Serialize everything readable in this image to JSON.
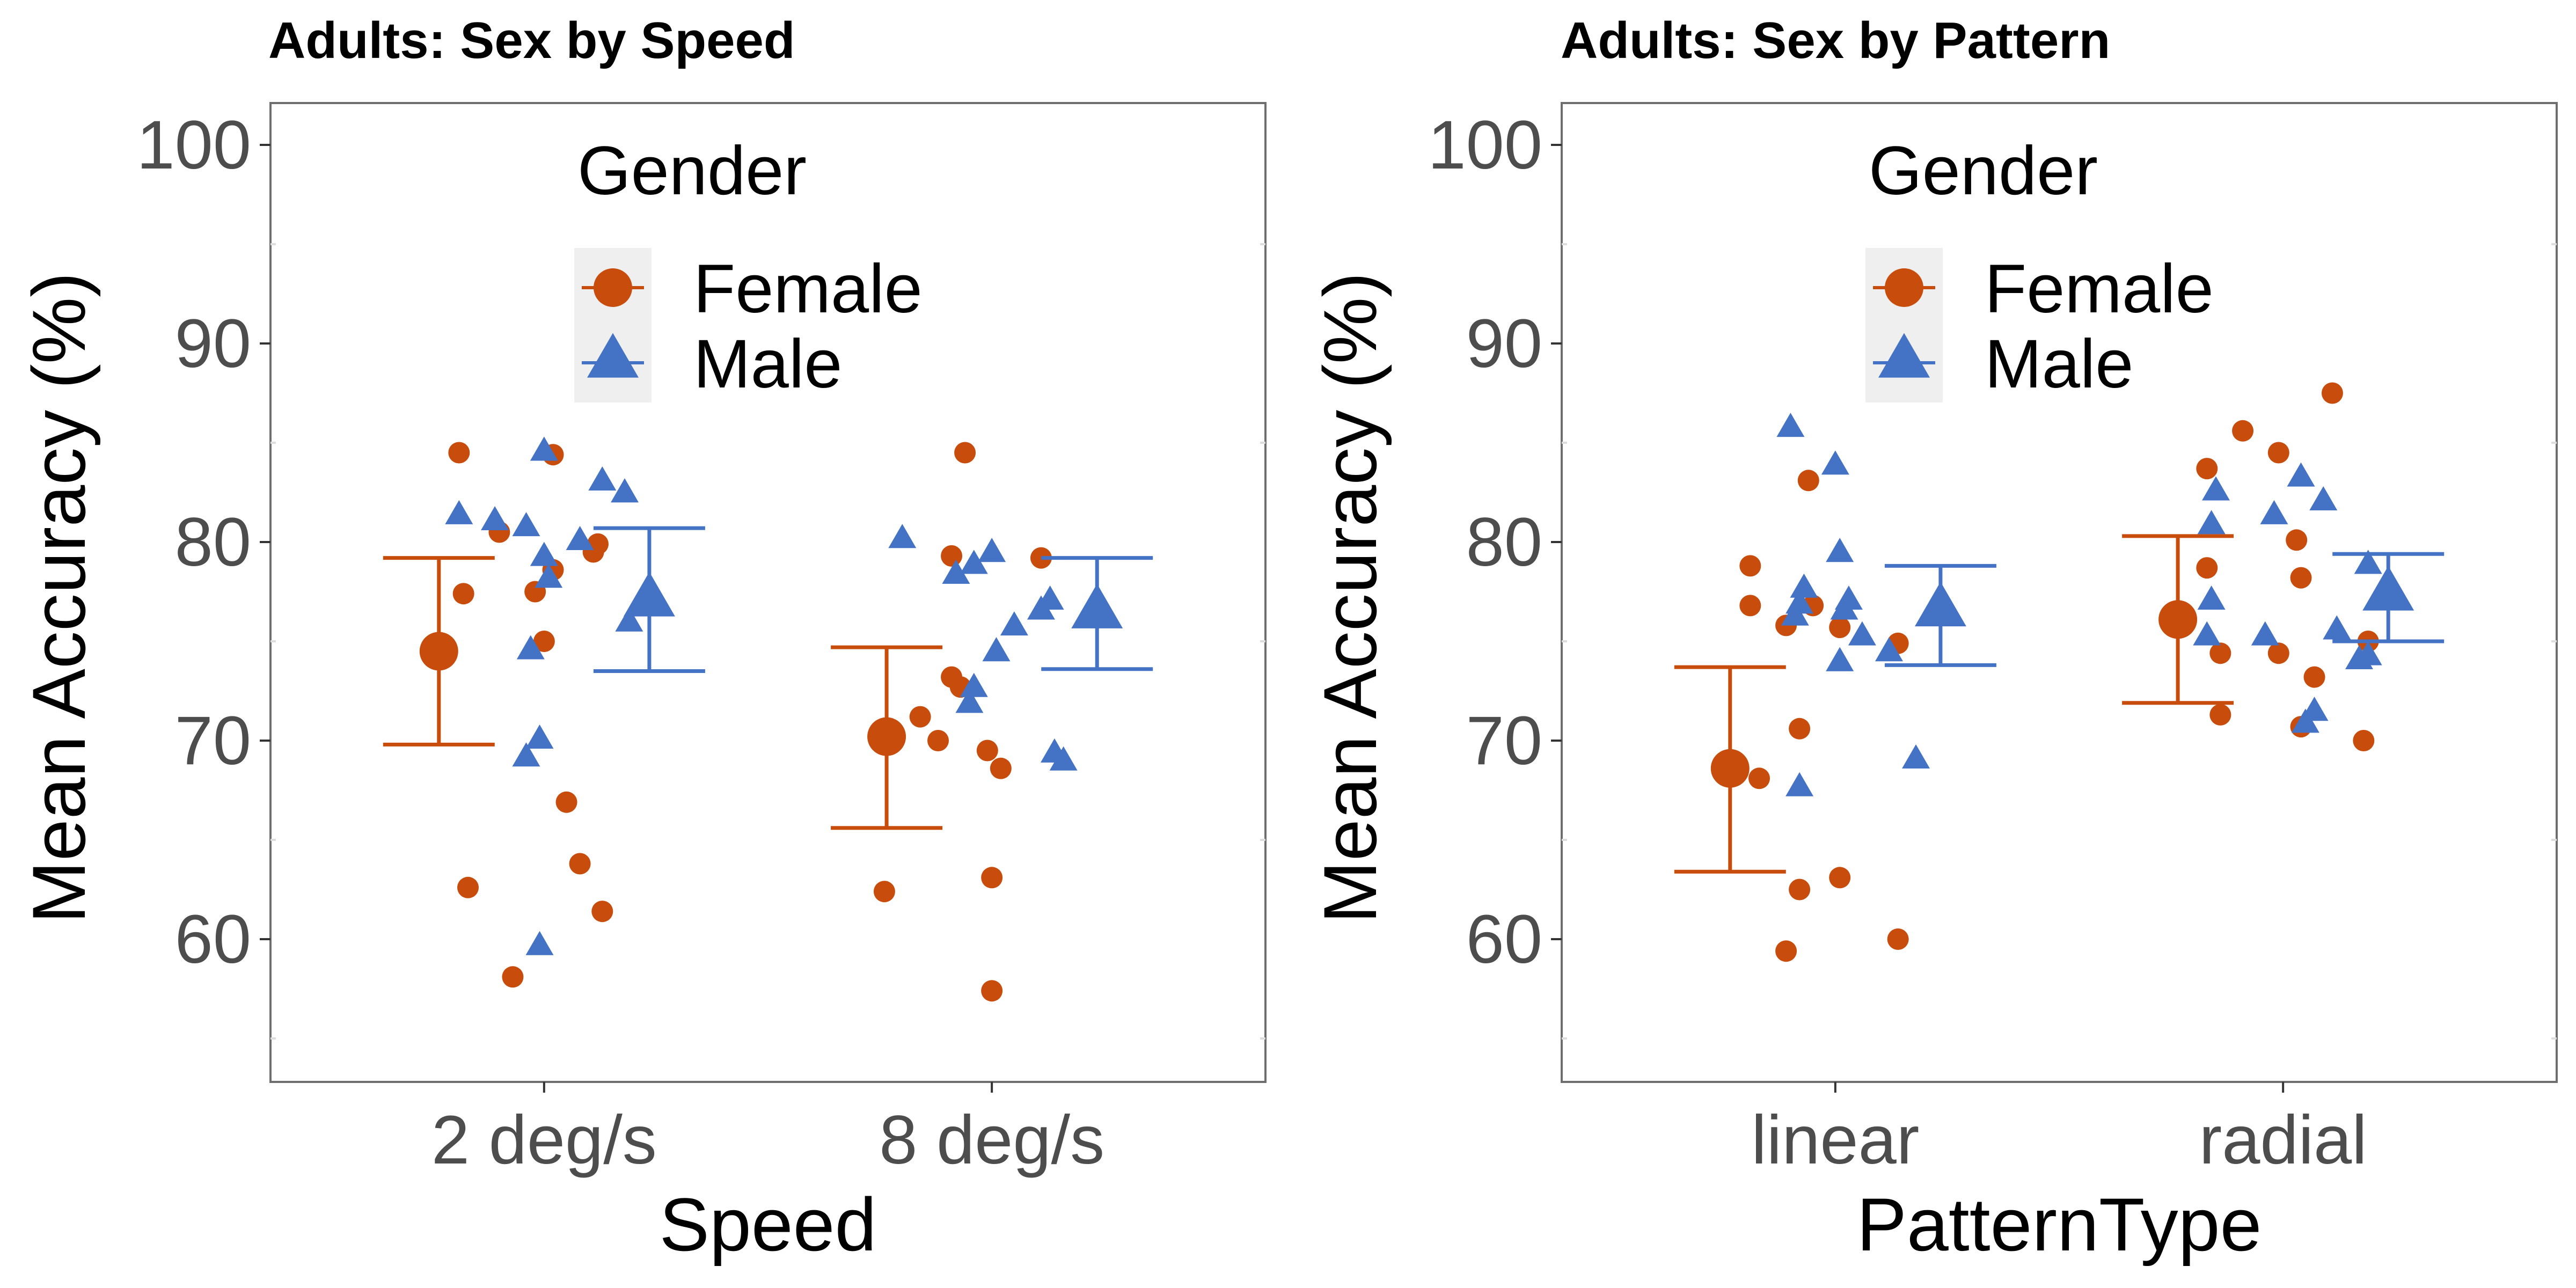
{
  "colors": {
    "female": "#C84C0C",
    "male": "#4472C4",
    "axis_text": "#4D4D4D",
    "panel_border": "#6E6E6E",
    "legend_key_bg": "#EFEFEF"
  },
  "chart_data": [
    {
      "type": "scatter",
      "title": "Adults: Sex by Speed",
      "xlabel": "Speed",
      "ylabel": "Mean Accuracy (%)",
      "categories": [
        "2 deg/s",
        "8 deg/s"
      ],
      "yticks": [
        "60",
        "70",
        "80",
        "90",
        "100"
      ],
      "ylim": [
        53,
        102
      ],
      "grid": false,
      "legend": {
        "title": "Gender",
        "placement": "top-center",
        "entries": [
          "Female",
          "Male"
        ]
      },
      "summary": [
        {
          "group": "Female",
          "category": "2 deg/s",
          "mean": 74.5,
          "lower": 69.8,
          "upper": 79.2
        },
        {
          "group": "Male",
          "category": "2 deg/s",
          "mean": 77.0,
          "lower": 73.5,
          "upper": 80.7
        },
        {
          "group": "Female",
          "category": "8 deg/s",
          "mean": 70.2,
          "lower": 65.6,
          "upper": 74.7
        },
        {
          "group": "Male",
          "category": "8 deg/s",
          "mean": 76.4,
          "lower": 73.6,
          "upper": 79.2
        }
      ],
      "points": [
        {
          "group": "Female",
          "category": "2 deg/s",
          "dx": -0.19,
          "y": 84.5
        },
        {
          "group": "Female",
          "category": "2 deg/s",
          "dx": -0.18,
          "y": 77.4
        },
        {
          "group": "Female",
          "category": "2 deg/s",
          "dx": -0.17,
          "y": 62.6
        },
        {
          "group": "Female",
          "category": "2 deg/s",
          "dx": -0.1,
          "y": 80.5
        },
        {
          "group": "Female",
          "category": "2 deg/s",
          "dx": -0.07,
          "y": 58.1
        },
        {
          "group": "Female",
          "category": "2 deg/s",
          "dx": -0.02,
          "y": 77.5
        },
        {
          "group": "Female",
          "category": "2 deg/s",
          "dx": 0.0,
          "y": 75.0
        },
        {
          "group": "Female",
          "category": "2 deg/s",
          "dx": 0.02,
          "y": 84.4
        },
        {
          "group": "Female",
          "category": "2 deg/s",
          "dx": 0.02,
          "y": 78.6
        },
        {
          "group": "Female",
          "category": "2 deg/s",
          "dx": 0.05,
          "y": 66.9
        },
        {
          "group": "Female",
          "category": "2 deg/s",
          "dx": 0.08,
          "y": 63.8
        },
        {
          "group": "Female",
          "category": "2 deg/s",
          "dx": 0.11,
          "y": 79.5
        },
        {
          "group": "Female",
          "category": "2 deg/s",
          "dx": 0.12,
          "y": 79.9
        },
        {
          "group": "Female",
          "category": "2 deg/s",
          "dx": 0.13,
          "y": 61.4
        },
        {
          "group": "Male",
          "category": "2 deg/s",
          "dx": -0.19,
          "y": 81.3
        },
        {
          "group": "Male",
          "category": "2 deg/s",
          "dx": -0.11,
          "y": 81.0
        },
        {
          "group": "Male",
          "category": "2 deg/s",
          "dx": -0.04,
          "y": 80.7
        },
        {
          "group": "Male",
          "category": "2 deg/s",
          "dx": -0.04,
          "y": 69.1
        },
        {
          "group": "Male",
          "category": "2 deg/s",
          "dx": -0.03,
          "y": 74.5
        },
        {
          "group": "Male",
          "category": "2 deg/s",
          "dx": -0.01,
          "y": 70.0
        },
        {
          "group": "Male",
          "category": "2 deg/s",
          "dx": -0.01,
          "y": 59.6
        },
        {
          "group": "Male",
          "category": "2 deg/s",
          "dx": 0.0,
          "y": 84.5
        },
        {
          "group": "Male",
          "category": "2 deg/s",
          "dx": 0.0,
          "y": 79.2
        },
        {
          "group": "Male",
          "category": "2 deg/s",
          "dx": 0.01,
          "y": 78.1
        },
        {
          "group": "Male",
          "category": "2 deg/s",
          "dx": 0.08,
          "y": 80.0
        },
        {
          "group": "Male",
          "category": "2 deg/s",
          "dx": 0.13,
          "y": 83.0
        },
        {
          "group": "Male",
          "category": "2 deg/s",
          "dx": 0.18,
          "y": 82.4
        },
        {
          "group": "Male",
          "category": "2 deg/s",
          "dx": 0.19,
          "y": 75.9
        },
        {
          "group": "Female",
          "category": "8 deg/s",
          "dx": -0.24,
          "y": 62.4
        },
        {
          "group": "Female",
          "category": "8 deg/s",
          "dx": -0.16,
          "y": 71.2
        },
        {
          "group": "Female",
          "category": "8 deg/s",
          "dx": -0.12,
          "y": 70.0
        },
        {
          "group": "Female",
          "category": "8 deg/s",
          "dx": -0.09,
          "y": 79.3
        },
        {
          "group": "Female",
          "category": "8 deg/s",
          "dx": -0.09,
          "y": 73.2
        },
        {
          "group": "Female",
          "category": "8 deg/s",
          "dx": -0.07,
          "y": 72.7
        },
        {
          "group": "Female",
          "category": "8 deg/s",
          "dx": -0.06,
          "y": 84.5
        },
        {
          "group": "Female",
          "category": "8 deg/s",
          "dx": 0.0,
          "y": 63.1
        },
        {
          "group": "Female",
          "category": "8 deg/s",
          "dx": -0.01,
          "y": 69.5
        },
        {
          "group": "Female",
          "category": "8 deg/s",
          "dx": 0.02,
          "y": 68.6
        },
        {
          "group": "Female",
          "category": "8 deg/s",
          "dx": 0.0,
          "y": 57.4
        },
        {
          "group": "Female",
          "category": "8 deg/s",
          "dx": 0.11,
          "y": 79.2
        },
        {
          "group": "Male",
          "category": "8 deg/s",
          "dx": -0.2,
          "y": 80.1
        },
        {
          "group": "Male",
          "category": "8 deg/s",
          "dx": -0.08,
          "y": 78.3
        },
        {
          "group": "Male",
          "category": "8 deg/s",
          "dx": -0.04,
          "y": 78.8
        },
        {
          "group": "Male",
          "category": "8 deg/s",
          "dx": -0.04,
          "y": 72.6
        },
        {
          "group": "Male",
          "category": "8 deg/s",
          "dx": -0.05,
          "y": 71.8
        },
        {
          "group": "Male",
          "category": "8 deg/s",
          "dx": 0.0,
          "y": 79.4
        },
        {
          "group": "Male",
          "category": "8 deg/s",
          "dx": 0.01,
          "y": 74.4
        },
        {
          "group": "Male",
          "category": "8 deg/s",
          "dx": 0.05,
          "y": 75.7
        },
        {
          "group": "Male",
          "category": "8 deg/s",
          "dx": 0.11,
          "y": 76.5
        },
        {
          "group": "Male",
          "category": "8 deg/s",
          "dx": 0.13,
          "y": 77.0
        },
        {
          "group": "Male",
          "category": "8 deg/s",
          "dx": 0.14,
          "y": 69.3
        },
        {
          "group": "Male",
          "category": "8 deg/s",
          "dx": 0.16,
          "y": 68.9
        }
      ]
    },
    {
      "type": "scatter",
      "title": "Adults: Sex by Pattern",
      "xlabel": "PatternType",
      "ylabel": "Mean Accuracy (%)",
      "categories": [
        "linear",
        "radial"
      ],
      "yticks": [
        "60",
        "70",
        "80",
        "90",
        "100"
      ],
      "ylim": [
        53,
        102
      ],
      "grid": false,
      "legend": {
        "title": "Gender",
        "placement": "top-center",
        "entries": [
          "Female",
          "Male"
        ]
      },
      "summary": [
        {
          "group": "Female",
          "category": "linear",
          "mean": 68.6,
          "lower": 63.4,
          "upper": 73.7
        },
        {
          "group": "Male",
          "category": "linear",
          "mean": 76.5,
          "lower": 73.8,
          "upper": 78.8
        },
        {
          "group": "Female",
          "category": "radial",
          "mean": 76.1,
          "lower": 71.9,
          "upper": 80.3
        },
        {
          "group": "Male",
          "category": "radial",
          "mean": 77.3,
          "lower": 75.0,
          "upper": 79.4
        }
      ],
      "points": [
        {
          "group": "Female",
          "category": "linear",
          "dx": -0.19,
          "y": 78.8
        },
        {
          "group": "Female",
          "category": "linear",
          "dx": -0.19,
          "y": 76.8
        },
        {
          "group": "Female",
          "category": "linear",
          "dx": -0.17,
          "y": 68.1
        },
        {
          "group": "Female",
          "category": "linear",
          "dx": -0.11,
          "y": 59.4
        },
        {
          "group": "Female",
          "category": "linear",
          "dx": -0.11,
          "y": 75.8
        },
        {
          "group": "Female",
          "category": "linear",
          "dx": -0.08,
          "y": 62.5
        },
        {
          "group": "Female",
          "category": "linear",
          "dx": -0.08,
          "y": 70.6
        },
        {
          "group": "Female",
          "category": "linear",
          "dx": -0.06,
          "y": 83.1
        },
        {
          "group": "Female",
          "category": "linear",
          "dx": -0.05,
          "y": 76.8
        },
        {
          "group": "Female",
          "category": "linear",
          "dx": 0.01,
          "y": 63.1
        },
        {
          "group": "Female",
          "category": "linear",
          "dx": 0.01,
          "y": 75.7
        },
        {
          "group": "Female",
          "category": "linear",
          "dx": 0.14,
          "y": 74.9
        },
        {
          "group": "Female",
          "category": "linear",
          "dx": 0.14,
          "y": 60.0
        },
        {
          "group": "Male",
          "category": "linear",
          "dx": -0.1,
          "y": 85.7
        },
        {
          "group": "Male",
          "category": "linear",
          "dx": -0.09,
          "y": 76.2
        },
        {
          "group": "Male",
          "category": "linear",
          "dx": -0.08,
          "y": 76.8
        },
        {
          "group": "Male",
          "category": "linear",
          "dx": -0.07,
          "y": 77.6
        },
        {
          "group": "Male",
          "category": "linear",
          "dx": -0.08,
          "y": 67.6
        },
        {
          "group": "Male",
          "category": "linear",
          "dx": 0.0,
          "y": 83.8
        },
        {
          "group": "Male",
          "category": "linear",
          "dx": 0.01,
          "y": 79.4
        },
        {
          "group": "Male",
          "category": "linear",
          "dx": 0.01,
          "y": 73.9
        },
        {
          "group": "Male",
          "category": "linear",
          "dx": 0.02,
          "y": 76.5
        },
        {
          "group": "Male",
          "category": "linear",
          "dx": 0.03,
          "y": 77.0
        },
        {
          "group": "Male",
          "category": "linear",
          "dx": 0.06,
          "y": 75.2
        },
        {
          "group": "Male",
          "category": "linear",
          "dx": 0.12,
          "y": 74.4
        },
        {
          "group": "Male",
          "category": "linear",
          "dx": 0.18,
          "y": 69.0
        },
        {
          "group": "Female",
          "category": "radial",
          "dx": -0.17,
          "y": 83.7
        },
        {
          "group": "Female",
          "category": "radial",
          "dx": -0.17,
          "y": 78.7
        },
        {
          "group": "Female",
          "category": "radial",
          "dx": -0.14,
          "y": 71.3
        },
        {
          "group": "Female",
          "category": "radial",
          "dx": -0.14,
          "y": 74.4
        },
        {
          "group": "Female",
          "category": "radial",
          "dx": -0.09,
          "y": 85.6
        },
        {
          "group": "Female",
          "category": "radial",
          "dx": -0.01,
          "y": 84.5
        },
        {
          "group": "Female",
          "category": "radial",
          "dx": -0.01,
          "y": 74.4
        },
        {
          "group": "Female",
          "category": "radial",
          "dx": 0.03,
          "y": 80.1
        },
        {
          "group": "Female",
          "category": "radial",
          "dx": 0.04,
          "y": 78.2
        },
        {
          "group": "Female",
          "category": "radial",
          "dx": 0.04,
          "y": 70.7
        },
        {
          "group": "Female",
          "category": "radial",
          "dx": 0.07,
          "y": 73.2
        },
        {
          "group": "Female",
          "category": "radial",
          "dx": 0.11,
          "y": 87.5
        },
        {
          "group": "Female",
          "category": "radial",
          "dx": 0.18,
          "y": 70.0
        },
        {
          "group": "Female",
          "category": "radial",
          "dx": 0.19,
          "y": 75.0
        },
        {
          "group": "Male",
          "category": "radial",
          "dx": -0.17,
          "y": 75.2
        },
        {
          "group": "Male",
          "category": "radial",
          "dx": -0.16,
          "y": 77.0
        },
        {
          "group": "Male",
          "category": "radial",
          "dx": -0.16,
          "y": 80.8
        },
        {
          "group": "Male",
          "category": "radial",
          "dx": -0.15,
          "y": 82.5
        },
        {
          "group": "Male",
          "category": "radial",
          "dx": -0.04,
          "y": 75.2
        },
        {
          "group": "Male",
          "category": "radial",
          "dx": -0.02,
          "y": 81.3
        },
        {
          "group": "Male",
          "category": "radial",
          "dx": 0.04,
          "y": 83.2
        },
        {
          "group": "Male",
          "category": "radial",
          "dx": 0.05,
          "y": 70.8
        },
        {
          "group": "Male",
          "category": "radial",
          "dx": 0.07,
          "y": 71.4
        },
        {
          "group": "Male",
          "category": "radial",
          "dx": 0.09,
          "y": 82.0
        },
        {
          "group": "Male",
          "category": "radial",
          "dx": 0.12,
          "y": 75.5
        },
        {
          "group": "Male",
          "category": "radial",
          "dx": 0.17,
          "y": 74.0
        },
        {
          "group": "Male",
          "category": "radial",
          "dx": 0.19,
          "y": 74.2
        },
        {
          "group": "Male",
          "category": "radial",
          "dx": 0.19,
          "y": 78.8
        }
      ]
    }
  ]
}
